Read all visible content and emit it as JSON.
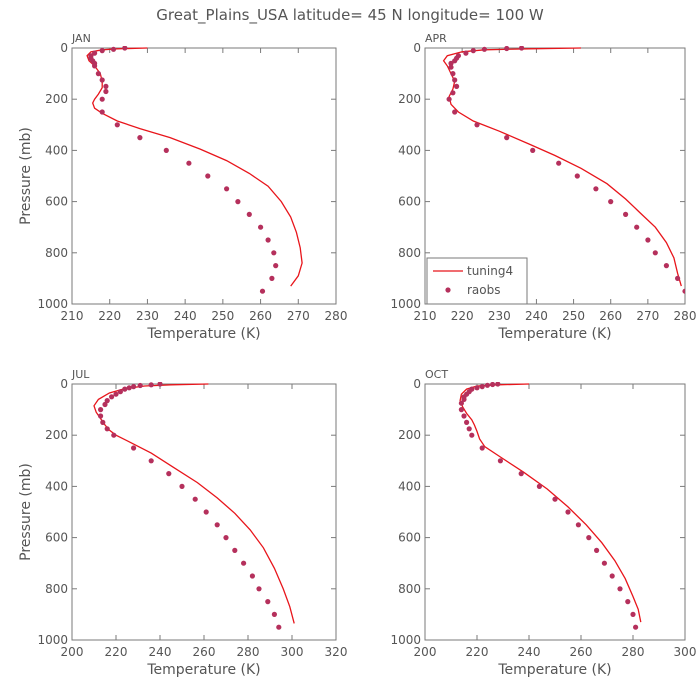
{
  "title": "Great_Plains_USA   latitude= 45 N longitude= 100 W",
  "legend": {
    "model_label": "tuning4",
    "obs_label": "raobs",
    "placement": "bottom-left of APR panel"
  },
  "colors": {
    "model_line": "#e8151b",
    "obs_marker": "#b5305c",
    "axis": "#7a7a7a",
    "text": "#555555"
  },
  "chart_data": [
    {
      "type": "line",
      "panel_label": "JAN",
      "xlabel": "Temperature (K)",
      "ylabel": "Pressure (mb)",
      "xlim": [
        210,
        280
      ],
      "ylim": [
        1000,
        0
      ],
      "xticks": [
        210,
        220,
        230,
        240,
        250,
        260,
        270,
        280
      ],
      "yticks": [
        0,
        200,
        400,
        600,
        800,
        1000
      ],
      "series": [
        {
          "name": "tuning4",
          "kind": "line",
          "points": [
            [
              230,
              0
            ],
            [
              222,
              3
            ],
            [
              218,
              7
            ],
            [
              215,
              15
            ],
            [
              214,
              30
            ],
            [
              214.5,
              50
            ],
            [
              216,
              70
            ],
            [
              217.5,
              100
            ],
            [
              218,
              130
            ],
            [
              218,
              155
            ],
            [
              217,
              180
            ],
            [
              216,
              200
            ],
            [
              215.5,
              215
            ],
            [
              216,
              235
            ],
            [
              218,
              255
            ],
            [
              222,
              285
            ],
            [
              228,
              315
            ],
            [
              236,
              350
            ],
            [
              244,
              395
            ],
            [
              251,
              440
            ],
            [
              257,
              490
            ],
            [
              262,
              540
            ],
            [
              265.5,
              600
            ],
            [
              268,
              660
            ],
            [
              269.5,
              720
            ],
            [
              270.5,
              780
            ],
            [
              271,
              840
            ],
            [
              270,
              890
            ],
            [
              268,
              930
            ]
          ]
        },
        {
          "name": "raobs",
          "kind": "scatter",
          "points": [
            [
              224,
              0
            ],
            [
              221,
              5
            ],
            [
              218,
              10
            ],
            [
              216,
              20
            ],
            [
              215,
              30
            ],
            [
              215,
              40
            ],
            [
              215.5,
              50
            ],
            [
              216,
              60
            ],
            [
              216,
              70
            ],
            [
              217,
              100
            ],
            [
              218,
              125
            ],
            [
              219,
              150
            ],
            [
              219,
              170
            ],
            [
              218,
              200
            ],
            [
              218,
              250
            ],
            [
              222,
              300
            ],
            [
              228,
              350
            ],
            [
              235,
              400
            ],
            [
              241,
              450
            ],
            [
              246,
              500
            ],
            [
              251,
              550
            ],
            [
              254,
              600
            ],
            [
              257,
              650
            ],
            [
              260,
              700
            ],
            [
              262,
              750
            ],
            [
              263.5,
              800
            ],
            [
              264,
              850
            ],
            [
              263,
              900
            ],
            [
              260.5,
              950
            ]
          ]
        }
      ]
    },
    {
      "type": "line",
      "panel_label": "APR",
      "xlabel": "Temperature (K)",
      "ylabel": "",
      "xlim": [
        210,
        280
      ],
      "ylim": [
        1000,
        0
      ],
      "xticks": [
        210,
        220,
        230,
        240,
        250,
        260,
        270,
        280
      ],
      "yticks": [
        0,
        200,
        400,
        600,
        800,
        1000
      ],
      "series": [
        {
          "name": "tuning4",
          "kind": "line",
          "points": [
            [
              252,
              0
            ],
            [
              238,
              3
            ],
            [
              226,
              7
            ],
            [
              220,
              15
            ],
            [
              216,
              30
            ],
            [
              215,
              50
            ],
            [
              216,
              70
            ],
            [
              217,
              100
            ],
            [
              218,
              130
            ],
            [
              217.5,
              160
            ],
            [
              216.5,
              190
            ],
            [
              217,
              220
            ],
            [
              219,
              250
            ],
            [
              223,
              285
            ],
            [
              230,
              325
            ],
            [
              238,
              375
            ],
            [
              245,
              420
            ],
            [
              252,
              470
            ],
            [
              259,
              530
            ],
            [
              264,
              590
            ],
            [
              268,
              645
            ],
            [
              272,
              700
            ],
            [
              275,
              760
            ],
            [
              277,
              820
            ],
            [
              278,
              880
            ],
            [
              279,
              930
            ]
          ]
        },
        {
          "name": "raobs",
          "kind": "scatter",
          "points": [
            [
              236,
              0
            ],
            [
              232,
              2
            ],
            [
              226,
              5
            ],
            [
              223,
              10
            ],
            [
              221,
              20
            ],
            [
              219,
              30
            ],
            [
              218.5,
              40
            ],
            [
              218,
              50
            ],
            [
              217,
              60
            ],
            [
              217,
              75
            ],
            [
              217.5,
              100
            ],
            [
              218,
              125
            ],
            [
              218.5,
              150
            ],
            [
              217.5,
              175
            ],
            [
              216.5,
              200
            ],
            [
              218,
              250
            ],
            [
              224,
              300
            ],
            [
              232,
              350
            ],
            [
              239,
              400
            ],
            [
              246,
              450
            ],
            [
              251,
              500
            ],
            [
              256,
              550
            ],
            [
              260,
              600
            ],
            [
              264,
              650
            ],
            [
              267,
              700
            ],
            [
              270,
              750
            ],
            [
              272,
              800
            ],
            [
              275,
              850
            ],
            [
              278,
              900
            ],
            [
              280,
              950
            ]
          ]
        }
      ]
    },
    {
      "type": "line",
      "panel_label": "JUL",
      "xlabel": "Temperature (K)",
      "ylabel": "Pressure (mb)",
      "xlim": [
        200,
        320
      ],
      "ylim": [
        1000,
        0
      ],
      "xticks": [
        200,
        220,
        240,
        260,
        280,
        300,
        320
      ],
      "yticks": [
        0,
        200,
        400,
        600,
        800,
        1000
      ],
      "series": [
        {
          "name": "tuning4",
          "kind": "line",
          "points": [
            [
              262,
              0
            ],
            [
              245,
              3
            ],
            [
              233,
              8
            ],
            [
              224,
              18
            ],
            [
              217,
              35
            ],
            [
              212,
              60
            ],
            [
              210,
              85
            ],
            [
              211,
              110
            ],
            [
              213,
              135
            ],
            [
              215,
              160
            ],
            [
              217,
              180
            ],
            [
              220,
              200
            ],
            [
              227,
              230
            ],
            [
              236,
              270
            ],
            [
              246,
              325
            ],
            [
              257,
              385
            ],
            [
              266,
              445
            ],
            [
              274,
              505
            ],
            [
              281,
              570
            ],
            [
              287,
              640
            ],
            [
              292,
              720
            ],
            [
              296,
              800
            ],
            [
              299,
              870
            ],
            [
              301,
              935
            ]
          ]
        },
        {
          "name": "raobs",
          "kind": "scatter",
          "points": [
            [
              240,
              0
            ],
            [
              236,
              3
            ],
            [
              231,
              6
            ],
            [
              228,
              10
            ],
            [
              226,
              15
            ],
            [
              224,
              20
            ],
            [
              222,
              30
            ],
            [
              220,
              40
            ],
            [
              218,
              50
            ],
            [
              216,
              65
            ],
            [
              215,
              80
            ],
            [
              213,
              100
            ],
            [
              213,
              125
            ],
            [
              214,
              150
            ],
            [
              216,
              175
            ],
            [
              219,
              200
            ],
            [
              228,
              250
            ],
            [
              236,
              300
            ],
            [
              244,
              350
            ],
            [
              250,
              400
            ],
            [
              256,
              450
            ],
            [
              261,
              500
            ],
            [
              266,
              550
            ],
            [
              270,
              600
            ],
            [
              274,
              650
            ],
            [
              278,
              700
            ],
            [
              282,
              750
            ],
            [
              285,
              800
            ],
            [
              289,
              850
            ],
            [
              292,
              900
            ],
            [
              294,
              950
            ]
          ]
        }
      ]
    },
    {
      "type": "line",
      "panel_label": "OCT",
      "xlabel": "Temperature (K)",
      "ylabel": "",
      "xlim": [
        200,
        300
      ],
      "ylim": [
        1000,
        0
      ],
      "xticks": [
        200,
        220,
        240,
        260,
        280,
        300
      ],
      "yticks": [
        0,
        200,
        400,
        600,
        800,
        1000
      ],
      "series": [
        {
          "name": "tuning4",
          "kind": "line",
          "points": [
            [
              240,
              0
            ],
            [
              228,
              3
            ],
            [
              220,
              8
            ],
            [
              216,
              20
            ],
            [
              214,
              40
            ],
            [
              213.5,
              65
            ],
            [
              214.5,
              90
            ],
            [
              216,
              115
            ],
            [
              218,
              140
            ],
            [
              219,
              160
            ],
            [
              220,
              185
            ],
            [
              221,
              215
            ],
            [
              223,
              245
            ],
            [
              229,
              285
            ],
            [
              238,
              345
            ],
            [
              247,
              410
            ],
            [
              255,
              480
            ],
            [
              262,
              550
            ],
            [
              268,
              620
            ],
            [
              273,
              690
            ],
            [
              277,
              760
            ],
            [
              280,
              830
            ],
            [
              282,
              880
            ],
            [
              283,
              930
            ]
          ]
        },
        {
          "name": "raobs",
          "kind": "scatter",
          "points": [
            [
              228,
              0
            ],
            [
              226,
              2
            ],
            [
              224,
              5
            ],
            [
              222,
              10
            ],
            [
              220,
              15
            ],
            [
              218,
              20
            ],
            [
              217,
              30
            ],
            [
              216,
              40
            ],
            [
              215,
              50
            ],
            [
              215,
              60
            ],
            [
              214,
              75
            ],
            [
              214,
              100
            ],
            [
              215,
              125
            ],
            [
              216,
              150
            ],
            [
              217,
              175
            ],
            [
              218,
              200
            ],
            [
              222,
              250
            ],
            [
              229,
              300
            ],
            [
              237,
              350
            ],
            [
              244,
              400
            ],
            [
              250,
              450
            ],
            [
              255,
              500
            ],
            [
              259,
              550
            ],
            [
              263,
              600
            ],
            [
              266,
              650
            ],
            [
              269,
              700
            ],
            [
              272,
              750
            ],
            [
              275,
              800
            ],
            [
              278,
              850
            ],
            [
              280,
              900
            ],
            [
              281,
              950
            ]
          ]
        }
      ]
    }
  ]
}
